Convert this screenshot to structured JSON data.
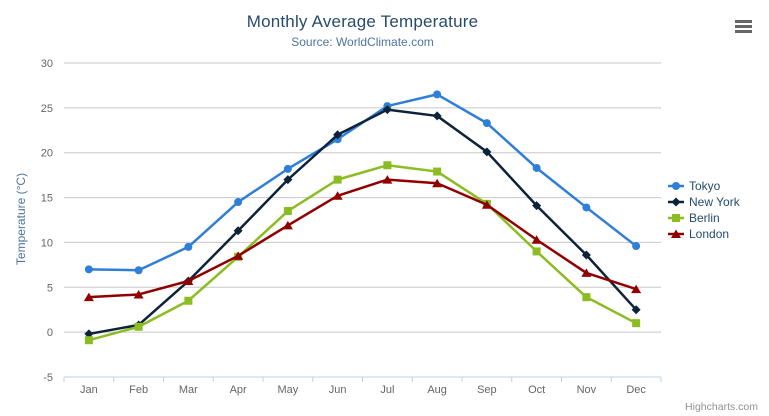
{
  "chart_data": {
    "type": "line",
    "title": "Monthly Average Temperature",
    "subtitle": "Source: WorldClimate.com",
    "categories": [
      "Jan",
      "Feb",
      "Mar",
      "Apr",
      "May",
      "Jun",
      "Jul",
      "Aug",
      "Sep",
      "Oct",
      "Nov",
      "Dec"
    ],
    "series": [
      {
        "name": "Tokyo",
        "color": "#2f7ed8",
        "marker": "circle",
        "values": [
          7.0,
          6.9,
          9.5,
          14.5,
          18.2,
          21.5,
          25.2,
          26.5,
          23.3,
          18.3,
          13.9,
          9.6
        ]
      },
      {
        "name": "New York",
        "color": "#0d233a",
        "marker": "diamond",
        "values": [
          -0.2,
          0.8,
          5.7,
          11.3,
          17.0,
          22.0,
          24.8,
          24.1,
          20.1,
          14.1,
          8.6,
          2.5
        ]
      },
      {
        "name": "Berlin",
        "color": "#8bbc21",
        "marker": "square",
        "values": [
          -0.9,
          0.6,
          3.5,
          8.4,
          13.5,
          17.0,
          18.6,
          17.9,
          14.3,
          9.0,
          3.9,
          1.0
        ]
      },
      {
        "name": "London",
        "color": "#910000",
        "marker": "triangle",
        "values": [
          3.9,
          4.2,
          5.7,
          8.5,
          11.9,
          15.2,
          17.0,
          16.6,
          14.2,
          10.3,
          6.6,
          4.8
        ]
      }
    ],
    "xlabel": "",
    "ylabel": "Temperature (°C)",
    "ylim": [
      -5,
      30
    ],
    "y_tick_interval": 5,
    "grid": true,
    "legend_position": "right"
  },
  "credits": "Highcharts.com",
  "icons": {
    "context_menu": "hamburger-menu-icon"
  },
  "colors": {
    "title": "#274b6d",
    "subtitle": "#4d759e",
    "axis_label": "#666666",
    "axis_title": "#4d759e",
    "grid_line": "#c8c8c8",
    "axis_line": "#c0d0e0",
    "tick": "#c0d0e0",
    "legend_text": "#274b6d",
    "credits": "#909090",
    "menu_icon": "#666666"
  }
}
